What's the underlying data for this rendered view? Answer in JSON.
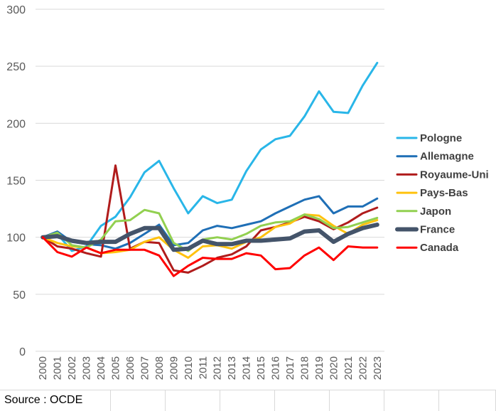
{
  "chart_data": {
    "type": "line",
    "categories": [
      "2000",
      "2001",
      "2002",
      "2003",
      "2004",
      "2005",
      "2006",
      "2007",
      "2008",
      "2009",
      "2010",
      "2011",
      "2012",
      "2013",
      "2014",
      "2015",
      "2016",
      "2017",
      "2018",
      "2019",
      "2020",
      "2021",
      "2022",
      "2023"
    ],
    "ylim": [
      0,
      300
    ],
    "yticks": [
      0,
      50,
      100,
      150,
      200,
      250,
      300
    ],
    "grid": "horizontal",
    "legend_position": "right",
    "series": [
      {
        "name": "Pologne",
        "color": "#29b6e8",
        "width": 3,
        "values": [
          100,
          103,
          88,
          92,
          110,
          118,
          135,
          157,
          167,
          143,
          121,
          136,
          130,
          133,
          158,
          177,
          186,
          189,
          206,
          228,
          210,
          209,
          233,
          253
        ]
      },
      {
        "name": "Allemagne",
        "color": "#1f6fb6",
        "width": 3,
        "values": [
          100,
          105,
          96,
          94,
          93,
          90,
          95,
          103,
          111,
          93,
          95,
          106,
          110,
          108,
          111,
          114,
          121,
          127,
          133,
          136,
          121,
          127,
          127,
          134
        ]
      },
      {
        "name": "Royaume-Uni",
        "color": "#b01c1c",
        "width": 3,
        "values": [
          100,
          92,
          90,
          86,
          83,
          163,
          90,
          96,
          95,
          71,
          69,
          75,
          82,
          85,
          92,
          106,
          109,
          113,
          118,
          114,
          107,
          113,
          121,
          126
        ]
      },
      {
        "name": "Pays-Bas",
        "color": "#ffc20e",
        "width": 3,
        "values": [
          100,
          95,
          92,
          91,
          86,
          87,
          89,
          96,
          100,
          89,
          82,
          92,
          93,
          90,
          96,
          100,
          109,
          112,
          120,
          119,
          110,
          103,
          111,
          115
        ]
      },
      {
        "name": "Japon",
        "color": "#92d050",
        "width": 3,
        "values": [
          100,
          104,
          93,
          91,
          98,
          114,
          115,
          124,
          121,
          95,
          88,
          98,
          100,
          98,
          103,
          110,
          113,
          114,
          120,
          116,
          108,
          109,
          113,
          117
        ]
      },
      {
        "name": "France",
        "color": "#44546a",
        "width": 6,
        "values": [
          100,
          101,
          97,
          95,
          96,
          96,
          103,
          108,
          108,
          89,
          90,
          97,
          94,
          94,
          97,
          97,
          98,
          99,
          105,
          106,
          96,
          103,
          108,
          111
        ]
      },
      {
        "name": "Canada",
        "color": "#ff0000",
        "width": 3,
        "values": [
          100,
          87,
          83,
          91,
          86,
          89,
          89,
          89,
          84,
          66,
          75,
          82,
          81,
          81,
          86,
          84,
          72,
          73,
          84,
          91,
          80,
          92,
          91,
          91
        ]
      }
    ]
  },
  "footer": {
    "source": "Source : OCDE"
  }
}
